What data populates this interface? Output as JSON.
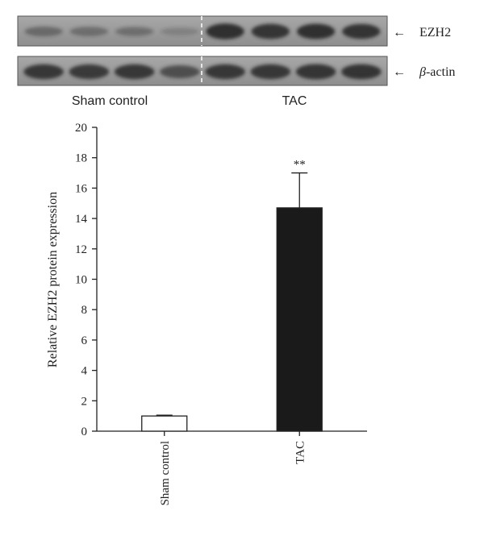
{
  "blot": {
    "markers": [
      {
        "name": "EZH2",
        "arrow": "←"
      },
      {
        "name": "β-actin",
        "arrow": "←",
        "italic_prefix": "β",
        "suffix": "-actin"
      }
    ],
    "groups": [
      "Sham control",
      "TAC"
    ],
    "lanes_per_group": 4,
    "ezh2_band_intensity": [
      0.35,
      0.32,
      0.28,
      0.12,
      0.95,
      0.9,
      0.92,
      0.88
    ],
    "actin_band_intensity": [
      0.85,
      0.82,
      0.85,
      0.6,
      0.85,
      0.85,
      0.9,
      0.88
    ],
    "colors": {
      "membrane": "#9a9a9a",
      "band": "#2a2a2a",
      "divider": "#ffffff"
    }
  },
  "chart_data": {
    "type": "bar",
    "categories": [
      "Sham control",
      "TAC"
    ],
    "values": [
      1.0,
      14.7
    ],
    "error_upper": [
      0.05,
      2.3
    ],
    "bar_fill": [
      "#ffffff",
      "#1a1a1a"
    ],
    "annotations": [
      {
        "category": "TAC",
        "text": "**"
      }
    ],
    "ylabel": "Relative EZH2 protein expression",
    "xlabel": "",
    "ylim": [
      0,
      20
    ],
    "yticks": [
      0,
      2,
      4,
      6,
      8,
      10,
      12,
      14,
      16,
      18,
      20
    ],
    "grid": false
  }
}
